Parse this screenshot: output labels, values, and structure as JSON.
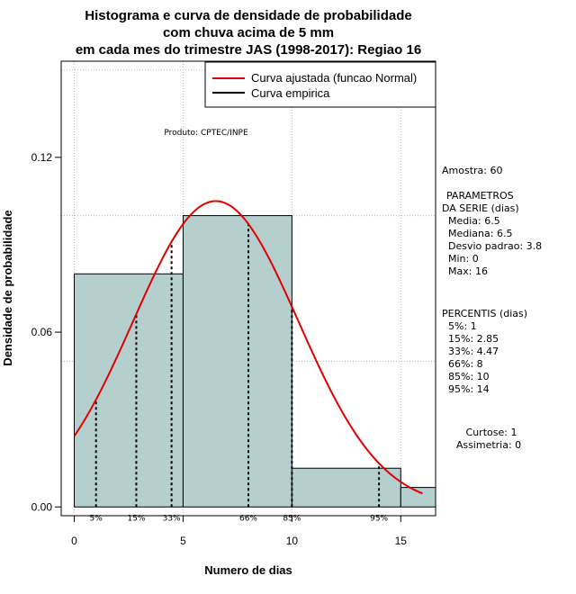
{
  "chart_data": {
    "type": "histogram",
    "title": [
      "Histograma e curva de densidade de probabilidade",
      "com chuva acima de 5 mm",
      "em cada mes do trimestre JAS (1998-2017): Regiao 16"
    ],
    "xlabel": "Numero de dias",
    "ylabel": "Densidade de probabilidade",
    "xlim": [
      -0.6,
      16.6
    ],
    "ylim": [
      -0.003,
      0.153
    ],
    "x_ticks": [
      0,
      5,
      10,
      15
    ],
    "y_ticks": [
      0.0,
      0.06,
      0.12
    ],
    "y_tick_labels": [
      "0.00",
      "0.06",
      "0.12"
    ],
    "gridlines_x": [
      0,
      5,
      10,
      15
    ],
    "gridlines_y": [
      0.05,
      0.1,
      0.15
    ],
    "bins": [
      {
        "start": 0,
        "end": 5,
        "density": 0.08
      },
      {
        "start": 5,
        "end": 10,
        "density": 0.1
      },
      {
        "start": 10,
        "end": 15,
        "density": 0.0133
      },
      {
        "start": 15,
        "end": 16.6,
        "density": 0.0067
      }
    ],
    "bar_fill": "#b5cece",
    "normal_curve": {
      "mean": 6.5,
      "sd": 3.8,
      "x_range": [
        0,
        16
      ],
      "color": "#e00000"
    },
    "percentile_lines": [
      {
        "label": "5%",
        "x": 1
      },
      {
        "label": "15%",
        "x": 2.85
      },
      {
        "label": "33%",
        "x": 4.47
      },
      {
        "label": "66%",
        "x": 8
      },
      {
        "label": "85%",
        "x": 10
      },
      {
        "label": "95%",
        "x": 14
      }
    ],
    "legend": [
      {
        "label": "Curva ajustada (funcao Normal)",
        "color": "#e00000"
      },
      {
        "label": "Curva empirica",
        "color": "#000000"
      }
    ],
    "product_label": "Produto: CPTEC/INPE",
    "stats": {
      "amostra": "Amostra: 60",
      "params_title_1": "PARAMETROS",
      "params_title_2": "DA SERIE (dias)",
      "media": "Media: 6.5",
      "mediana": "Mediana: 6.5",
      "desvio": "Desvio padrao: 3.8",
      "min": "Min: 0",
      "max": "Max: 16",
      "percentis_title": "PERCENTIS (dias)",
      "p5": "5%: 1",
      "p15": "15%: 2.85",
      "p33": "33%: 4.47",
      "p66": "66%: 8",
      "p85": "85%: 10",
      "p95": "95%: 14",
      "curtose": "Curtose: 1",
      "assimetria": "Assimetria: 0"
    }
  }
}
